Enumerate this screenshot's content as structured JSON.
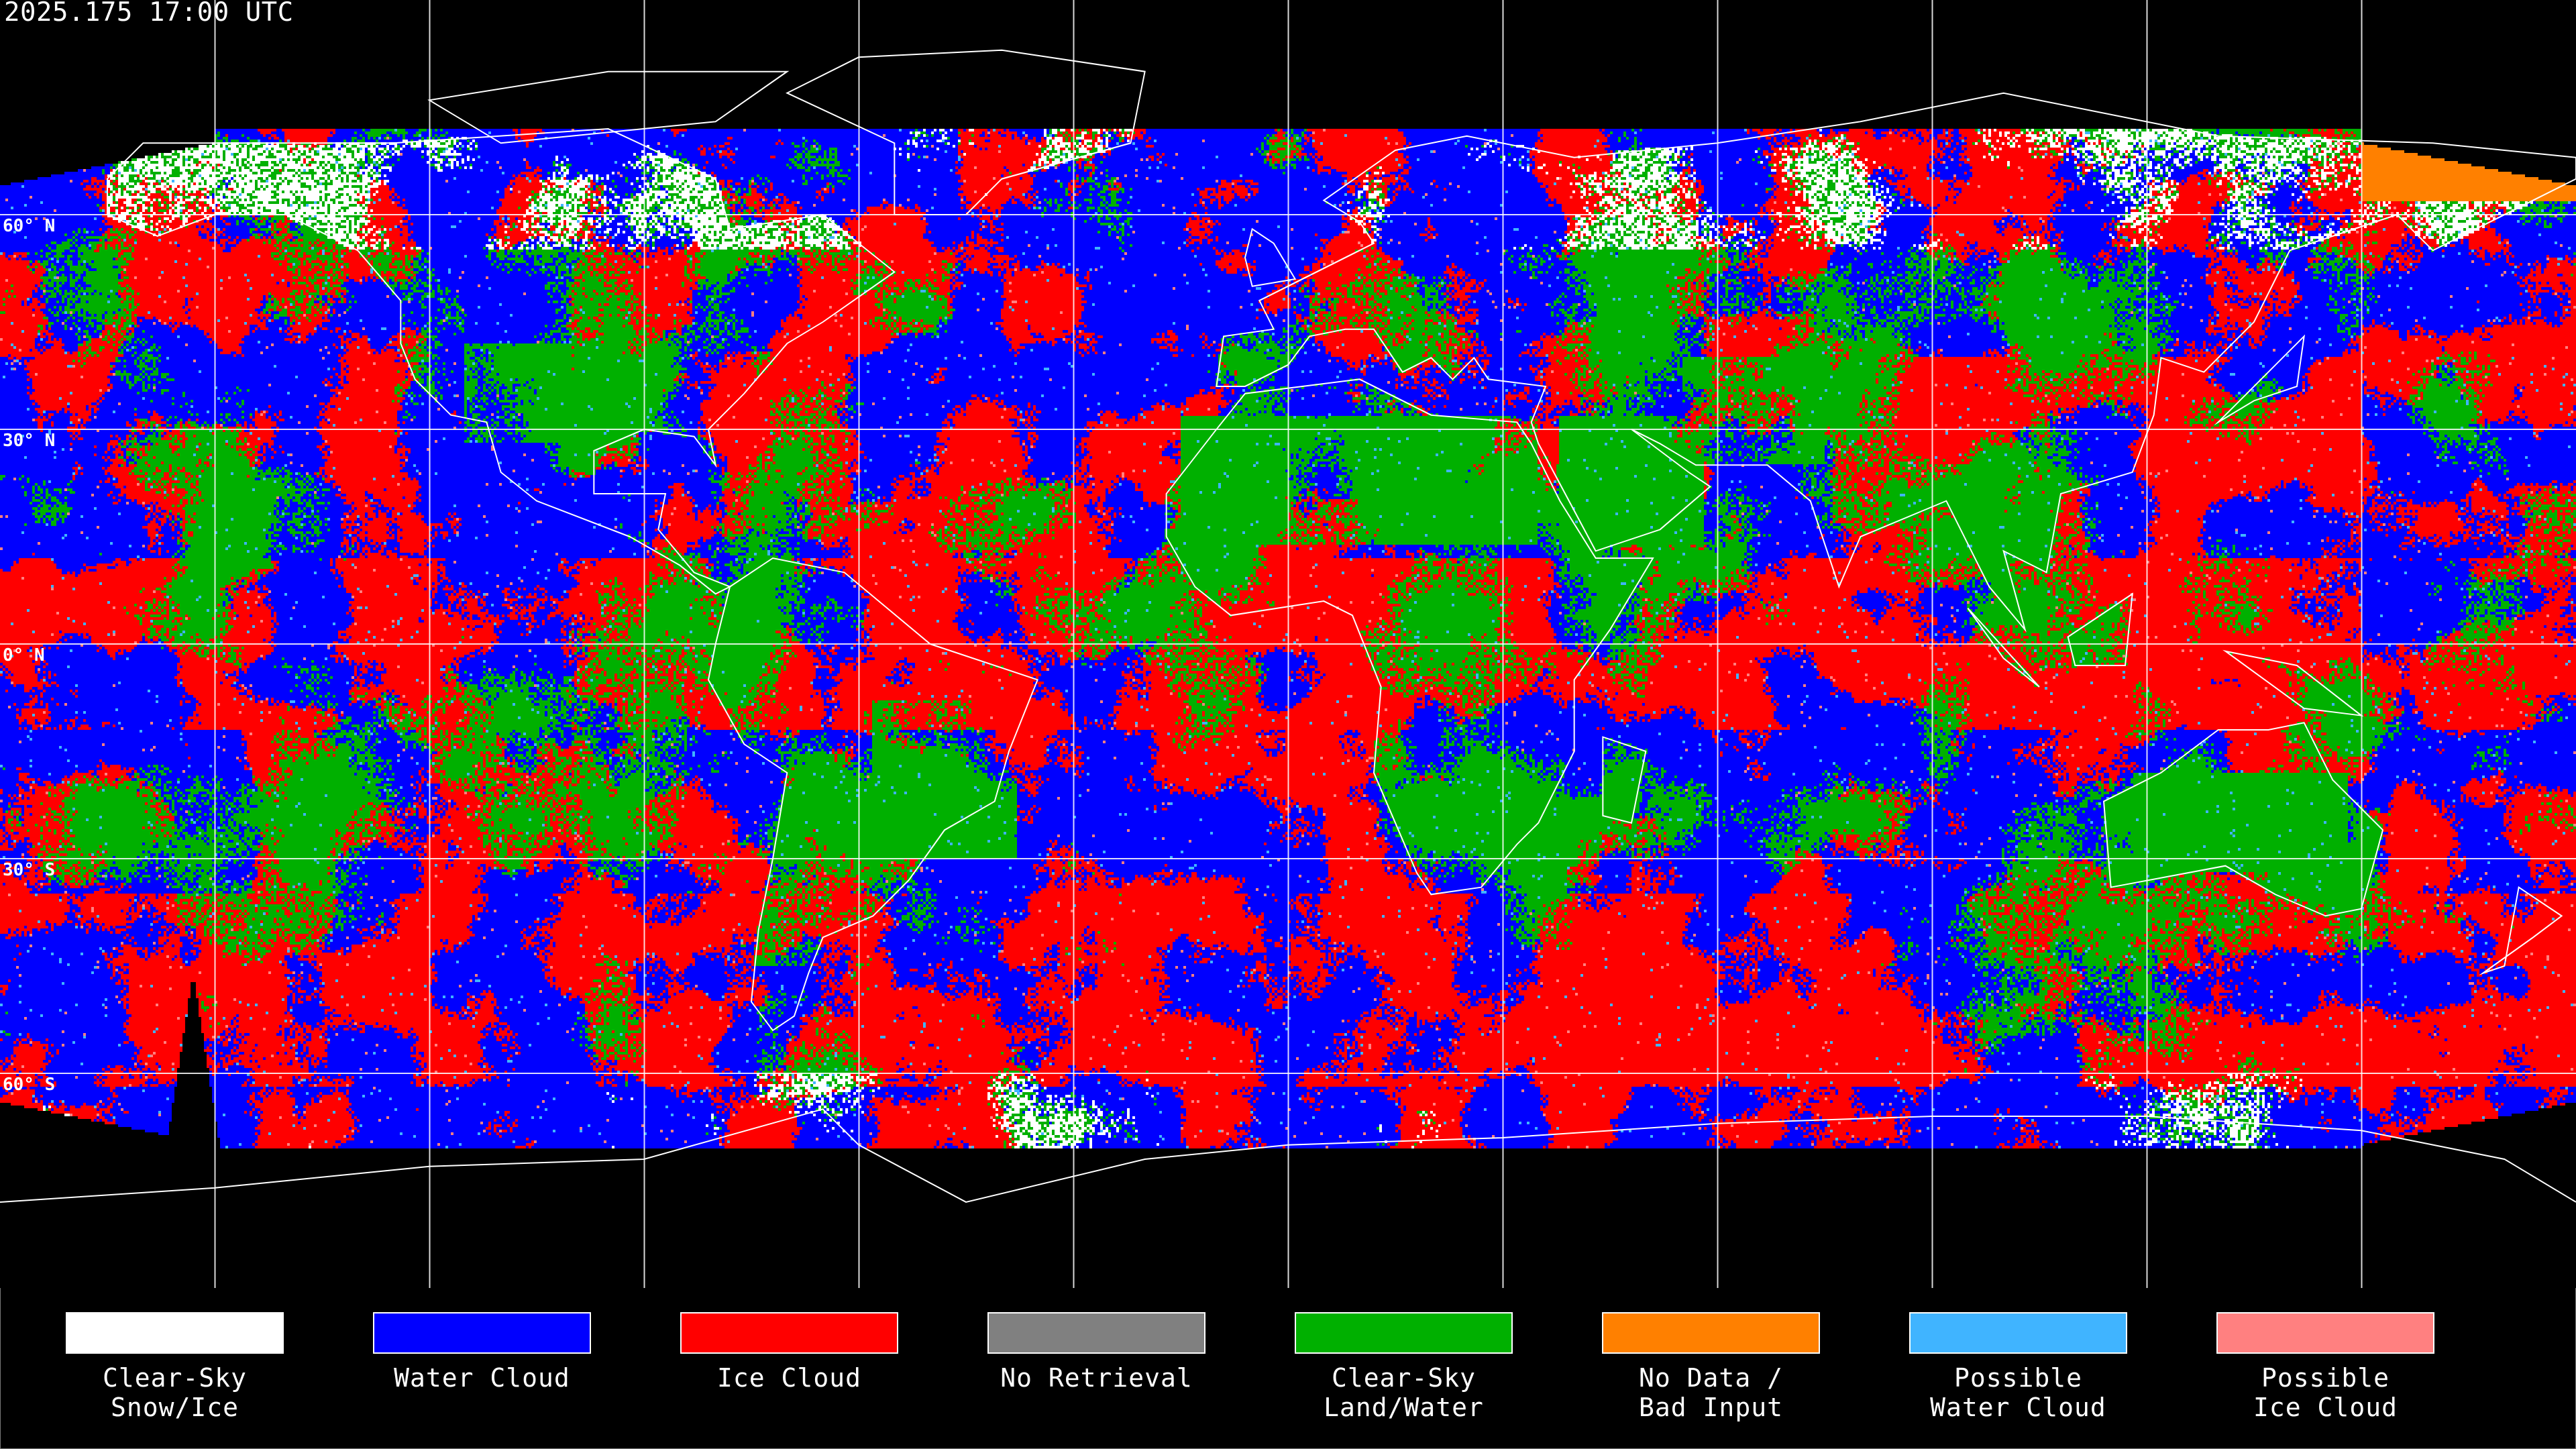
{
  "title": "2025.175 17:00 UTC",
  "lat_labels": [
    "60° N",
    "30° N",
    "0° N",
    "30° S",
    "60° S"
  ],
  "map": {
    "projection": "equirectangular",
    "graticule_spacing_deg": 30,
    "coastlines_color": "#ffffff"
  },
  "legend": [
    {
      "line1": "Clear-Sky",
      "line2": "Snow/Ice",
      "color": "#ffffff"
    },
    {
      "line1": "Water Cloud",
      "line2": "",
      "color": "#0000ff"
    },
    {
      "line1": "Ice Cloud",
      "line2": "",
      "color": "#ff0000"
    },
    {
      "line1": "No Retrieval",
      "line2": "",
      "color": "#808080"
    },
    {
      "line1": "Clear-Sky",
      "line2": "Land/Water",
      "color": "#00b000"
    },
    {
      "line1": "No Data /",
      "line2": "Bad Input",
      "color": "#ff8000"
    },
    {
      "line1": "Possible",
      "line2": "Water Cloud",
      "color": "#40b4ff"
    },
    {
      "line1": "Possible",
      "line2": "Ice Cloud",
      "color": "#ff8080"
    }
  ]
}
